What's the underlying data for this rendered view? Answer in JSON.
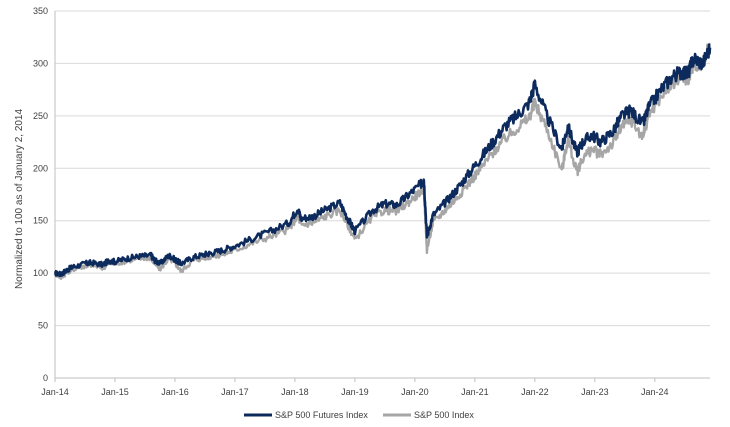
{
  "chart_data": {
    "type": "line",
    "ylabel": "Normalized to 100 as of January 2, 2014",
    "xlabel": "",
    "title": "",
    "ylim": [
      0,
      350
    ],
    "yticks": [
      0,
      50,
      100,
      150,
      200,
      250,
      300,
      350
    ],
    "xlim": [
      2014.0,
      2024.92
    ],
    "xticks": [
      {
        "x": 2014,
        "label": "Jan-14"
      },
      {
        "x": 2015,
        "label": "Jan-15"
      },
      {
        "x": 2016,
        "label": "Jan-16"
      },
      {
        "x": 2017,
        "label": "Jan-17"
      },
      {
        "x": 2018,
        "label": "Jan-18"
      },
      {
        "x": 2019,
        "label": "Jan-19"
      },
      {
        "x": 2020,
        "label": "Jan-20"
      },
      {
        "x": 2021,
        "label": "Jan-21"
      },
      {
        "x": 2022,
        "label": "Jan-22"
      },
      {
        "x": 2023,
        "label": "Jan-23"
      },
      {
        "x": 2024,
        "label": "Jan-24"
      }
    ],
    "grid": "horizontal",
    "legend_position": "bottom",
    "series": [
      {
        "name": "S&P 500 Futures Index",
        "color": "#0d2a5c",
        "x": [
          2014.0,
          2014.1,
          2014.2,
          2014.3,
          2014.5,
          2014.6,
          2014.8,
          2014.9,
          2015.0,
          2015.2,
          2015.4,
          2015.6,
          2015.65,
          2015.75,
          2015.9,
          2016.0,
          2016.1,
          2016.3,
          2016.5,
          2016.6,
          2016.8,
          2017.0,
          2017.3,
          2017.6,
          2017.9,
          2018.05,
          2018.1,
          2018.3,
          2018.5,
          2018.75,
          2018.9,
          2019.0,
          2019.3,
          2019.5,
          2019.7,
          2019.9,
          2020.1,
          2020.15,
          2020.2,
          2020.3,
          2020.5,
          2020.7,
          2020.9,
          2021.1,
          2021.3,
          2021.5,
          2021.7,
          2021.9,
          2022.0,
          2022.2,
          2022.45,
          2022.55,
          2022.7,
          2022.8,
          2022.95,
          2023.1,
          2023.3,
          2023.45,
          2023.6,
          2023.8,
          2023.9,
          2024.1,
          2024.3,
          2024.45,
          2024.55,
          2024.65,
          2024.8,
          2024.92
        ],
        "values": [
          100,
          99,
          103,
          106,
          109,
          110,
          108,
          112,
          111,
          114,
          116,
          117,
          113,
          109,
          117,
          113,
          109,
          115,
          118,
          119,
          122,
          126,
          133,
          140,
          148,
          162,
          152,
          154,
          160,
          167,
          150,
          140,
          160,
          166,
          165,
          175,
          185,
          190,
          135,
          155,
          167,
          180,
          195,
          210,
          225,
          240,
          250,
          262,
          280,
          250,
          218,
          240,
          215,
          225,
          232,
          225,
          235,
          250,
          255,
          242,
          258,
          275,
          288,
          292,
          290,
          305,
          300,
          315
        ]
      },
      {
        "name": "S&P 500 Index",
        "color": "#a6a6a6",
        "x": [
          2014.0,
          2014.1,
          2014.2,
          2014.3,
          2014.5,
          2014.6,
          2014.8,
          2014.9,
          2015.0,
          2015.2,
          2015.4,
          2015.6,
          2015.65,
          2015.75,
          2015.9,
          2016.0,
          2016.1,
          2016.3,
          2016.5,
          2016.6,
          2016.8,
          2017.0,
          2017.3,
          2017.6,
          2017.9,
          2018.05,
          2018.1,
          2018.3,
          2018.5,
          2018.75,
          2018.9,
          2019.0,
          2019.3,
          2019.5,
          2019.7,
          2019.9,
          2020.1,
          2020.15,
          2020.2,
          2020.3,
          2020.5,
          2020.7,
          2020.9,
          2021.1,
          2021.3,
          2021.5,
          2021.7,
          2021.9,
          2022.0,
          2022.2,
          2022.45,
          2022.55,
          2022.7,
          2022.8,
          2022.95,
          2023.1,
          2023.3,
          2023.45,
          2023.6,
          2023.8,
          2023.9,
          2024.1,
          2024.3,
          2024.45,
          2024.55,
          2024.65,
          2024.8,
          2024.92
        ],
        "values": [
          100,
          96,
          101,
          104,
          107,
          108,
          105,
          110,
          109,
          112,
          114,
          115,
          110,
          104,
          114,
          110,
          102,
          112,
          115,
          116,
          118,
          122,
          129,
          135,
          142,
          155,
          146,
          148,
          154,
          160,
          144,
          132,
          154,
          160,
          159,
          168,
          178,
          180,
          122,
          148,
          160,
          172,
          186,
          200,
          215,
          228,
          238,
          248,
          262,
          238,
          198,
          228,
          196,
          210,
          218,
          213,
          224,
          240,
          246,
          230,
          252,
          268,
          282,
          288,
          285,
          300,
          298,
          318
        ]
      }
    ]
  }
}
